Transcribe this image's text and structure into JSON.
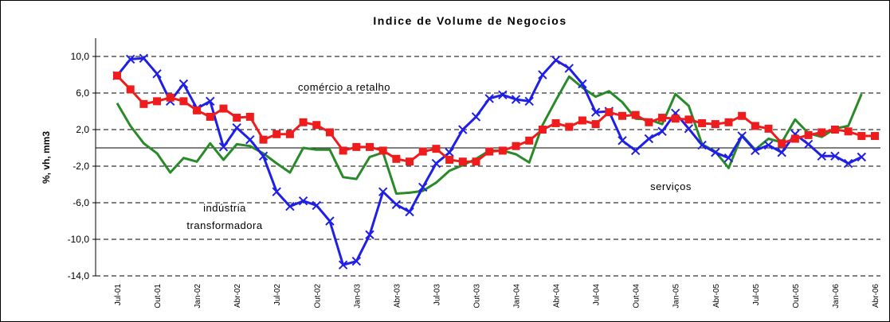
{
  "chart_data": {
    "type": "line",
    "title": "Indice de Volume de Negocios",
    "y_label": "%, vh, mm3",
    "categories": [
      "Jul-01",
      null,
      null,
      "Out-01",
      null,
      null,
      "Jan-02",
      null,
      null,
      "Abr-02",
      null,
      null,
      "Jul-02",
      null,
      null,
      "Out-02",
      null,
      null,
      "Jan-03",
      null,
      null,
      "Abr-03",
      null,
      null,
      "Jul-03",
      null,
      null,
      "Out-03",
      null,
      null,
      "Jan-04",
      null,
      null,
      "Abr-04",
      null,
      null,
      "Jul-04",
      null,
      null,
      "Out-04",
      null,
      null,
      "Jan-05",
      null,
      null,
      "Abr-05",
      null,
      null,
      "Jul-05",
      null,
      null,
      "Out-05",
      null,
      null,
      "Jan-06",
      null,
      null,
      "Abr-06"
    ],
    "series": [
      {
        "name": "indústria transformadora",
        "color": "#1f1fe6",
        "marker": "x",
        "values": [
          7.9,
          9.7,
          9.8,
          8.1,
          5.1,
          7.0,
          4.3,
          5.1,
          0.1,
          2.2,
          0.9,
          -0.9,
          -4.8,
          -6.4,
          -5.8,
          -6.3,
          -8.0,
          -12.8,
          -12.4,
          -9.5,
          -4.8,
          -6.2,
          -7.0,
          -4.3,
          -1.7,
          -0.5,
          2.0,
          3.4,
          5.4,
          5.8,
          5.3,
          5.1,
          8.0,
          9.6,
          8.7,
          7.0,
          3.9,
          4.0,
          0.8,
          -0.3,
          1.0,
          1.8,
          3.8,
          2.1,
          0.3,
          -0.5,
          -1.1,
          1.3,
          -0.3,
          0.3,
          -0.5,
          1.5,
          0.4,
          -0.9,
          -0.9,
          -1.7,
          -1.0,
          null
        ]
      },
      {
        "name": "comércio a retalho",
        "color": "#ee1c1c",
        "marker": "square",
        "values": [
          7.9,
          6.4,
          4.8,
          5.1,
          5.5,
          5.1,
          4.1,
          3.4,
          4.3,
          3.3,
          3.4,
          0.9,
          1.5,
          1.5,
          2.8,
          2.5,
          1.7,
          -0.3,
          0.1,
          0.1,
          -0.3,
          -1.2,
          -1.5,
          -0.4,
          -0.1,
          -1.3,
          -1.5,
          -1.5,
          -0.4,
          -0.3,
          0.2,
          0.8,
          2.0,
          2.7,
          2.3,
          3.0,
          2.6,
          3.9,
          3.5,
          3.6,
          2.8,
          3.3,
          3.2,
          3.1,
          2.7,
          2.6,
          2.8,
          3.5,
          2.4,
          2.1,
          0.5,
          1.0,
          1.4,
          1.7,
          2.0,
          1.8,
          1.3,
          1.3
        ]
      },
      {
        "name": "serviços",
        "color": "#2a8a2a",
        "marker": "none",
        "values": [
          4.9,
          2.4,
          0.5,
          -0.6,
          -2.7,
          -1.1,
          -1.5,
          0.5,
          -1.3,
          0.4,
          0.2,
          -0.6,
          -1.7,
          -2.7,
          0.0,
          -0.2,
          -0.2,
          -3.2,
          -3.4,
          -1.0,
          -0.5,
          -5.0,
          -4.9,
          -4.7,
          -3.8,
          -2.5,
          -1.9,
          -1.2,
          -0.3,
          -0.3,
          -0.7,
          -1.6,
          2.5,
          5.2,
          7.8,
          6.6,
          5.6,
          6.2,
          5.0,
          3.2,
          3.1,
          2.6,
          5.9,
          4.6,
          0.4,
          -0.4,
          -2.2,
          1.4,
          -0.2,
          1.0,
          0.6,
          3.1,
          1.6,
          1.2,
          2.1,
          2.4,
          5.9,
          null
        ]
      }
    ],
    "annotations": [
      "comércio a retalho",
      "indústria",
      "transformadora",
      "serviços"
    ],
    "ylim": [
      -14,
      12
    ],
    "yticks": [
      {
        "value": 10,
        "label": "10,0"
      },
      {
        "value": 6,
        "label": "6,0"
      },
      {
        "value": 2,
        "label": "2,0"
      },
      {
        "value": -2,
        "label": "-2,0"
      },
      {
        "value": -6,
        "label": "-6,0"
      },
      {
        "value": -10,
        "label": "-10,0"
      },
      {
        "value": -14,
        "label": "-14,0"
      }
    ],
    "grid": true
  }
}
